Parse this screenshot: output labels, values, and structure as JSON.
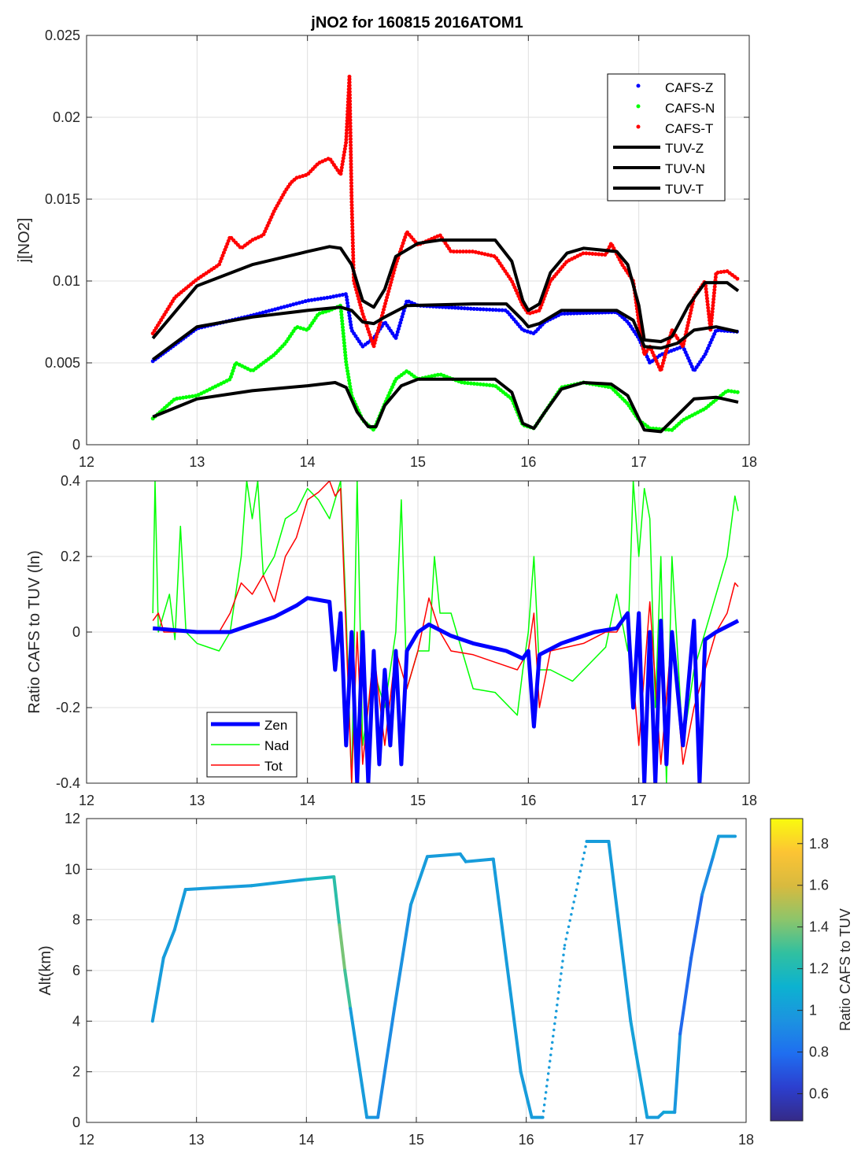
{
  "title": "jNO2 for 160815 2016ATOM1",
  "chart_data": [
    {
      "type": "scatter",
      "title": "jNO2 for 160815 2016ATOM1",
      "xlabel": "",
      "ylabel": "j[NO2]",
      "xlim": [
        12,
        18
      ],
      "ylim": [
        0,
        0.025
      ],
      "xticks": [
        12,
        13,
        14,
        15,
        16,
        17,
        18
      ],
      "yticks": [
        0,
        0.005,
        0.01,
        0.015,
        0.02,
        0.025
      ],
      "ytick_labels": [
        "0",
        "0.005",
        "0.01",
        "0.015",
        "0.02",
        "0.025"
      ],
      "grid": true,
      "legend_position": "top-right",
      "series": [
        {
          "name": "CAFS-Z",
          "kind": "dots",
          "color": "#0000ff",
          "x": [
            12.6,
            13.0,
            13.5,
            14.0,
            14.2,
            14.35,
            14.4,
            14.5,
            14.6,
            14.7,
            14.8,
            14.9,
            15.0,
            15.5,
            15.8,
            15.95,
            16.05,
            16.15,
            16.3,
            16.8,
            16.9,
            17.0,
            17.1,
            17.2,
            17.4,
            17.5,
            17.6,
            17.7,
            17.9
          ],
          "y": [
            0.0051,
            0.0071,
            0.0079,
            0.0088,
            0.009,
            0.0092,
            0.007,
            0.006,
            0.0065,
            0.0075,
            0.0065,
            0.0088,
            0.0085,
            0.0083,
            0.0082,
            0.007,
            0.0068,
            0.0075,
            0.008,
            0.0081,
            0.0075,
            0.0065,
            0.005,
            0.0055,
            0.006,
            0.0045,
            0.0055,
            0.007,
            0.0069
          ]
        },
        {
          "name": "CAFS-N",
          "kind": "dots",
          "color": "#00ff00",
          "x": [
            12.6,
            12.8,
            13.0,
            13.3,
            13.35,
            13.5,
            13.7,
            13.8,
            13.9,
            14.0,
            14.1,
            14.2,
            14.3,
            14.35,
            14.4,
            14.5,
            14.6,
            14.7,
            14.8,
            14.9,
            15.0,
            15.2,
            15.4,
            15.7,
            15.85,
            15.95,
            16.05,
            16.15,
            16.3,
            16.5,
            16.75,
            16.9,
            17.0,
            17.1,
            17.3,
            17.4,
            17.6,
            17.8,
            17.9
          ],
          "y": [
            0.0016,
            0.0028,
            0.003,
            0.004,
            0.005,
            0.0045,
            0.0055,
            0.0062,
            0.0072,
            0.007,
            0.008,
            0.0082,
            0.0085,
            0.005,
            0.003,
            0.0015,
            0.0009,
            0.0025,
            0.004,
            0.0045,
            0.004,
            0.0043,
            0.0038,
            0.0036,
            0.0028,
            0.0012,
            0.001,
            0.002,
            0.0035,
            0.0038,
            0.0035,
            0.0025,
            0.0015,
            0.001,
            0.0009,
            0.0015,
            0.0022,
            0.0033,
            0.0032
          ]
        },
        {
          "name": "CAFS-T",
          "kind": "dots",
          "color": "#ff0000",
          "x": [
            12.6,
            12.8,
            13.0,
            13.2,
            13.3,
            13.4,
            13.5,
            13.6,
            13.7,
            13.8,
            13.85,
            13.9,
            14.0,
            14.1,
            14.2,
            14.3,
            14.35,
            14.38,
            14.4,
            14.42,
            14.5,
            14.55,
            14.6,
            14.7,
            14.8,
            14.9,
            15.0,
            15.2,
            15.3,
            15.5,
            15.7,
            15.85,
            15.95,
            16.0,
            16.1,
            16.2,
            16.35,
            16.5,
            16.7,
            16.75,
            16.85,
            16.95,
            17.0,
            17.05,
            17.1,
            17.2,
            17.3,
            17.4,
            17.5,
            17.6,
            17.65,
            17.7,
            17.8,
            17.9
          ],
          "y": [
            0.0068,
            0.009,
            0.0101,
            0.011,
            0.0127,
            0.012,
            0.0125,
            0.0128,
            0.0143,
            0.0155,
            0.016,
            0.0163,
            0.0165,
            0.0172,
            0.0175,
            0.0165,
            0.0185,
            0.0225,
            0.015,
            0.01,
            0.008,
            0.007,
            0.006,
            0.0085,
            0.011,
            0.013,
            0.0122,
            0.0128,
            0.0118,
            0.0118,
            0.0115,
            0.01,
            0.0085,
            0.008,
            0.0082,
            0.01,
            0.0112,
            0.0117,
            0.0116,
            0.0123,
            0.011,
            0.01,
            0.0075,
            0.0055,
            0.006,
            0.0045,
            0.007,
            0.006,
            0.009,
            0.01,
            0.007,
            0.0105,
            0.0106,
            0.0101
          ]
        },
        {
          "name": "TUV-Z",
          "kind": "line",
          "color": "#000000",
          "x": [
            12.6,
            13.0,
            13.5,
            14.0,
            14.3,
            14.4,
            14.5,
            14.6,
            14.7,
            14.9,
            15.5,
            15.8,
            15.95,
            16.0,
            16.1,
            16.3,
            16.8,
            16.95,
            17.05,
            17.2,
            17.35,
            17.5,
            17.7,
            17.9
          ],
          "y": [
            0.0052,
            0.0072,
            0.0078,
            0.0082,
            0.0084,
            0.0082,
            0.0075,
            0.0074,
            0.0078,
            0.0085,
            0.0086,
            0.0086,
            0.0076,
            0.0072,
            0.0074,
            0.0082,
            0.0082,
            0.0076,
            0.006,
            0.0059,
            0.0062,
            0.007,
            0.0072,
            0.0069
          ]
        },
        {
          "name": "TUV-N",
          "kind": "line",
          "color": "#000000",
          "x": [
            12.6,
            13.0,
            13.5,
            14.0,
            14.25,
            14.35,
            14.45,
            14.55,
            14.62,
            14.7,
            14.85,
            15.0,
            15.7,
            15.85,
            15.95,
            16.05,
            16.15,
            16.3,
            16.5,
            16.75,
            16.9,
            17.05,
            17.2,
            17.35,
            17.5,
            17.7,
            17.9
          ],
          "y": [
            0.0017,
            0.0028,
            0.0033,
            0.0036,
            0.0038,
            0.0035,
            0.002,
            0.0011,
            0.0011,
            0.0024,
            0.0036,
            0.004,
            0.004,
            0.0032,
            0.0013,
            0.001,
            0.002,
            0.0034,
            0.0038,
            0.0037,
            0.003,
            0.0009,
            0.0008,
            0.0018,
            0.0028,
            0.0029,
            0.0026
          ]
        },
        {
          "name": "TUV-T",
          "kind": "line",
          "color": "#000000",
          "x": [
            12.6,
            13.0,
            13.5,
            14.0,
            14.2,
            14.3,
            14.4,
            14.5,
            14.6,
            14.7,
            14.8,
            15.0,
            15.2,
            15.7,
            15.85,
            15.95,
            16.0,
            16.1,
            16.2,
            16.35,
            16.5,
            16.8,
            16.9,
            17.0,
            17.05,
            17.2,
            17.3,
            17.45,
            17.6,
            17.8,
            17.9
          ],
          "y": [
            0.0065,
            0.0097,
            0.011,
            0.0118,
            0.0121,
            0.012,
            0.011,
            0.0088,
            0.0084,
            0.0095,
            0.0115,
            0.0123,
            0.0125,
            0.0125,
            0.0112,
            0.0088,
            0.0082,
            0.0086,
            0.0105,
            0.0117,
            0.012,
            0.0118,
            0.011,
            0.0085,
            0.0064,
            0.0063,
            0.0066,
            0.0085,
            0.0099,
            0.0099,
            0.0094
          ]
        }
      ]
    },
    {
      "type": "line",
      "xlabel": "",
      "ylabel": "Ratio CAFS to TUV (ln)",
      "xlim": [
        12,
        18
      ],
      "ylim": [
        -0.4,
        0.4
      ],
      "xticks": [
        12,
        13,
        14,
        15,
        16,
        17,
        18
      ],
      "yticks": [
        -0.4,
        -0.2,
        0,
        0.2,
        0.4
      ],
      "ytick_labels": [
        "-0.4",
        "-0.2",
        "0",
        "0.2",
        "0.4"
      ],
      "grid": true,
      "legend_position": "bottom-left",
      "series": [
        {
          "name": "Zen",
          "color": "#0000ff",
          "x": [
            12.6,
            13.0,
            13.3,
            13.5,
            13.7,
            13.9,
            14.0,
            14.2,
            14.25,
            14.3,
            14.35,
            14.4,
            14.45,
            14.5,
            14.55,
            14.6,
            14.65,
            14.7,
            14.75,
            14.8,
            14.85,
            14.9,
            15.0,
            15.1,
            15.3,
            15.5,
            15.8,
            15.95,
            16.0,
            16.05,
            16.1,
            16.3,
            16.6,
            16.8,
            16.9,
            16.95,
            17.0,
            17.05,
            17.1,
            17.15,
            17.2,
            17.25,
            17.3,
            17.4,
            17.5,
            17.55,
            17.6,
            17.7,
            17.9
          ],
          "y": [
            0.01,
            0.0,
            0.0,
            0.02,
            0.04,
            0.07,
            0.09,
            0.08,
            -0.1,
            0.05,
            -0.3,
            0.0,
            -0.4,
            0.0,
            -0.4,
            -0.05,
            -0.35,
            -0.1,
            -0.3,
            -0.05,
            -0.35,
            -0.05,
            0.0,
            0.02,
            -0.01,
            -0.03,
            -0.05,
            -0.07,
            -0.05,
            -0.25,
            -0.06,
            -0.03,
            0.0,
            0.01,
            0.05,
            -0.2,
            0.05,
            -0.4,
            0.0,
            -0.4,
            0.03,
            -0.35,
            0.0,
            -0.3,
            0.03,
            -0.4,
            -0.02,
            0.0,
            0.03
          ]
        },
        {
          "name": "Nad",
          "color": "#00ff00",
          "x": [
            12.6,
            12.62,
            12.65,
            12.75,
            12.8,
            12.85,
            12.9,
            13.0,
            13.2,
            13.3,
            13.35,
            13.4,
            13.45,
            13.5,
            13.55,
            13.6,
            13.7,
            13.8,
            13.9,
            14.0,
            14.1,
            14.2,
            14.3,
            14.35,
            14.4,
            14.45,
            14.5,
            14.6,
            14.7,
            14.8,
            14.85,
            14.9,
            15.0,
            15.1,
            15.15,
            15.2,
            15.3,
            15.4,
            15.5,
            15.7,
            15.9,
            15.95,
            16.0,
            16.05,
            16.1,
            16.2,
            16.4,
            16.6,
            16.7,
            16.8,
            16.9,
            16.95,
            17.0,
            17.05,
            17.1,
            17.15,
            17.2,
            17.25,
            17.3,
            17.4,
            17.5,
            17.6,
            17.7,
            17.8,
            17.87,
            17.9
          ],
          "y": [
            0.05,
            0.4,
            0.0,
            0.1,
            -0.02,
            0.28,
            0.0,
            -0.03,
            -0.05,
            0.0,
            0.1,
            0.2,
            0.4,
            0.3,
            0.4,
            0.15,
            0.2,
            0.3,
            0.32,
            0.38,
            0.35,
            0.3,
            0.4,
            0.05,
            -0.4,
            0.4,
            -0.3,
            -0.1,
            -0.2,
            0.0,
            0.35,
            -0.15,
            -0.05,
            -0.05,
            0.2,
            0.05,
            0.05,
            -0.05,
            -0.15,
            -0.16,
            -0.22,
            -0.1,
            0.0,
            0.2,
            -0.1,
            -0.1,
            -0.13,
            -0.07,
            -0.04,
            0.1,
            -0.05,
            0.4,
            0.2,
            0.38,
            0.3,
            -0.2,
            0.2,
            -0.4,
            0.2,
            -0.3,
            -0.1,
            0.0,
            0.1,
            0.2,
            0.36,
            0.32
          ]
        },
        {
          "name": "Tot",
          "color": "#ff0000",
          "x": [
            12.6,
            12.65,
            12.7,
            13.0,
            13.2,
            13.3,
            13.4,
            13.5,
            13.6,
            13.7,
            13.8,
            13.9,
            14.0,
            14.1,
            14.2,
            14.25,
            14.3,
            14.35,
            14.4,
            14.45,
            14.5,
            14.6,
            14.7,
            14.8,
            14.9,
            15.0,
            15.1,
            15.2,
            15.3,
            15.5,
            15.7,
            15.9,
            16.0,
            16.05,
            16.1,
            16.2,
            16.5,
            16.7,
            16.8,
            16.9,
            17.0,
            17.1,
            17.2,
            17.3,
            17.4,
            17.5,
            17.6,
            17.7,
            17.8,
            17.87,
            17.9
          ],
          "y": [
            0.03,
            0.05,
            0.0,
            0.0,
            0.0,
            0.05,
            0.13,
            0.1,
            0.15,
            0.08,
            0.2,
            0.25,
            0.35,
            0.37,
            0.4,
            0.36,
            0.38,
            0.0,
            -0.4,
            0.0,
            -0.35,
            -0.05,
            -0.3,
            -0.05,
            -0.15,
            -0.05,
            0.09,
            0.0,
            -0.05,
            -0.06,
            -0.08,
            -0.1,
            -0.05,
            0.05,
            -0.2,
            -0.05,
            -0.03,
            0.0,
            0.0,
            0.05,
            -0.3,
            0.08,
            -0.35,
            0.0,
            -0.35,
            -0.2,
            -0.1,
            0.0,
            0.05,
            0.13,
            0.12
          ]
        }
      ]
    },
    {
      "type": "scatter",
      "xlabel": "",
      "ylabel": "Alt(km)",
      "xlim": [
        12,
        18
      ],
      "ylim": [
        0,
        12
      ],
      "xticks": [
        12,
        13,
        14,
        15,
        16,
        17,
        18
      ],
      "yticks": [
        0,
        2,
        4,
        6,
        8,
        10,
        12
      ],
      "ytick_labels": [
        "0",
        "2",
        "4",
        "6",
        "8",
        "10",
        "12"
      ],
      "grid": true,
      "colorbar": {
        "label": "Ratio CAFS to TUV",
        "range": [
          0.47,
          1.92
        ],
        "ticks": [
          0.6,
          0.8,
          1,
          1.2,
          1.4,
          1.6,
          1.8
        ],
        "tick_labels": [
          "0.6",
          "0.8",
          "1",
          "1.2",
          "1.4",
          "1.6",
          "1.8"
        ],
        "colormap": [
          "#352a87",
          "#2c3fcf",
          "#1f6ef0",
          "#1c93e0",
          "#0cb2d0",
          "#31c0a0",
          "#8dc56a",
          "#d8ba3f",
          "#fcc434",
          "#f9fb0e"
        ]
      },
      "sparse_x_range": [
        16.15,
        16.55
      ],
      "x": [
        12.6,
        12.7,
        12.8,
        12.9,
        13.5,
        14.0,
        14.25,
        14.3,
        14.35,
        14.4,
        14.55,
        14.65,
        14.8,
        14.95,
        15.1,
        15.4,
        15.45,
        15.7,
        15.95,
        16.05,
        16.15,
        16.35,
        16.55,
        16.75,
        16.95,
        17.0,
        17.1,
        17.2,
        17.25,
        17.35,
        17.4,
        17.5,
        17.6,
        17.7,
        17.75,
        17.9
      ],
      "y": [
        4.0,
        6.5,
        7.6,
        9.2,
        9.35,
        9.6,
        9.7,
        7.8,
        6.0,
        4.5,
        0.2,
        0.2,
        4.5,
        8.6,
        10.5,
        10.6,
        10.3,
        10.4,
        2.0,
        0.2,
        0.2,
        7.0,
        11.1,
        11.1,
        4.0,
        2.7,
        0.2,
        0.2,
        0.4,
        0.4,
        3.5,
        6.5,
        9.0,
        10.5,
        11.3,
        11.3
      ],
      "ratio": [
        1.0,
        1.0,
        1.0,
        1.0,
        1.0,
        1.05,
        1.3,
        1.2,
        1.6,
        1.0,
        1.0,
        0.95,
        0.9,
        1.0,
        1.0,
        1.0,
        1.0,
        1.0,
        1.0,
        1.0,
        1.0,
        1.0,
        1.0,
        1.0,
        1.0,
        1.05,
        1.0,
        1.0,
        1.0,
        1.1,
        0.85,
        0.7,
        0.85,
        1.0,
        1.0,
        1.0
      ]
    }
  ]
}
